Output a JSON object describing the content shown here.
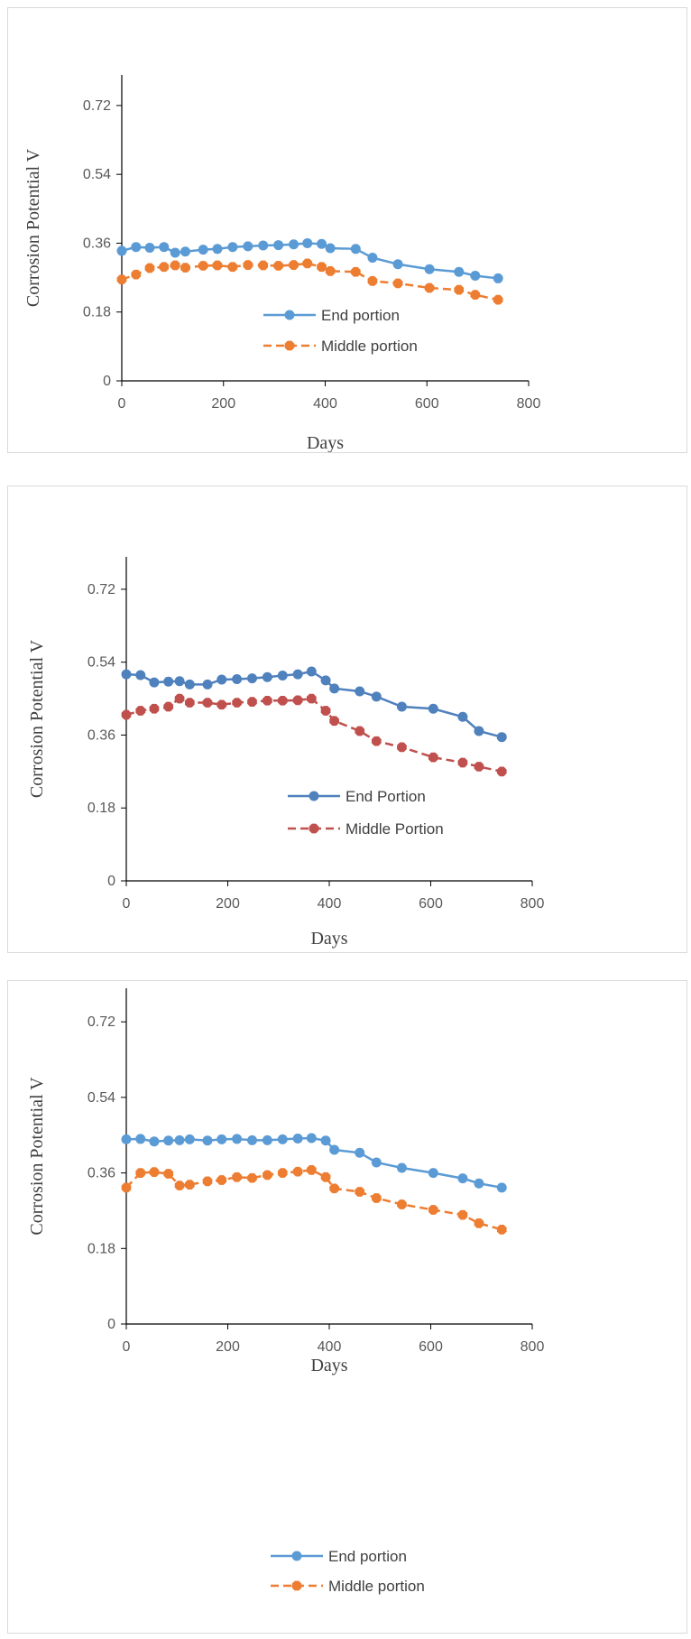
{
  "chart_data": [
    {
      "type": "line",
      "xlabel": "Days",
      "ylabel": "Corrosion Potential V",
      "xlim": [
        0,
        800
      ],
      "ylim": [
        0,
        0.8
      ],
      "xticks": [
        "0",
        "200",
        "400",
        "600",
        "800"
      ],
      "yticks": [
        "0",
        "0.18",
        "0.36",
        "0.54",
        "0.72"
      ],
      "legend_position": "center-right",
      "series": [
        {
          "name": "End portion",
          "color": "#5b9bd5",
          "style": "solid",
          "marker": "circle",
          "x": [
            0,
            28,
            55,
            83,
            105,
            125,
            160,
            188,
            218,
            248,
            278,
            308,
            338,
            365,
            393,
            410,
            460,
            493,
            543,
            605,
            663,
            695,
            740
          ],
          "y": [
            0.34,
            0.35,
            0.348,
            0.35,
            0.335,
            0.338,
            0.343,
            0.345,
            0.35,
            0.352,
            0.354,
            0.355,
            0.357,
            0.36,
            0.358,
            0.347,
            0.345,
            0.322,
            0.305,
            0.292,
            0.285,
            0.275,
            0.268
          ]
        },
        {
          "name": "Middle portion",
          "color": "#ed7d31",
          "style": "dashed",
          "marker": "octagon",
          "x": [
            0,
            28,
            55,
            83,
            105,
            125,
            160,
            188,
            218,
            248,
            278,
            308,
            338,
            365,
            393,
            410,
            460,
            493,
            543,
            605,
            663,
            695,
            740
          ],
          "y": [
            0.265,
            0.278,
            0.295,
            0.298,
            0.302,
            0.296,
            0.301,
            0.302,
            0.298,
            0.303,
            0.302,
            0.301,
            0.303,
            0.307,
            0.298,
            0.287,
            0.285,
            0.261,
            0.255,
            0.243,
            0.238,
            0.225,
            0.212
          ]
        }
      ]
    },
    {
      "type": "line",
      "xlabel": "Days",
      "ylabel": "Corrosion Potential V",
      "xlim": [
        0,
        800
      ],
      "ylim": [
        0,
        0.8
      ],
      "xticks": [
        "0",
        "200",
        "400",
        "600",
        "800"
      ],
      "yticks": [
        "0",
        "0.18",
        "0.36",
        "0.54",
        "0.72"
      ],
      "legend_position": "center-right",
      "series": [
        {
          "name": "End Portion",
          "color": "#4f81bd",
          "style": "solid",
          "marker": "circle",
          "x": [
            0,
            28,
            55,
            83,
            105,
            125,
            160,
            188,
            218,
            248,
            278,
            308,
            338,
            365,
            393,
            410,
            460,
            493,
            543,
            605,
            663,
            695,
            740
          ],
          "y": [
            0.51,
            0.508,
            0.49,
            0.492,
            0.493,
            0.485,
            0.485,
            0.497,
            0.498,
            0.5,
            0.503,
            0.507,
            0.51,
            0.517,
            0.495,
            0.475,
            0.468,
            0.455,
            0.43,
            0.425,
            0.405,
            0.37,
            0.355
          ]
        },
        {
          "name": "Middle Portion",
          "color": "#c0504d",
          "style": "dashed",
          "marker": "octagon",
          "x": [
            0,
            28,
            55,
            83,
            105,
            125,
            160,
            188,
            218,
            248,
            278,
            308,
            338,
            365,
            393,
            410,
            460,
            493,
            543,
            605,
            663,
            695,
            740
          ],
          "y": [
            0.41,
            0.42,
            0.425,
            0.43,
            0.45,
            0.44,
            0.44,
            0.435,
            0.44,
            0.442,
            0.445,
            0.445,
            0.446,
            0.45,
            0.42,
            0.395,
            0.37,
            0.345,
            0.33,
            0.305,
            0.292,
            0.282,
            0.27
          ]
        }
      ]
    },
    {
      "type": "line",
      "xlabel": "Days",
      "ylabel": "Corrosion Potential V",
      "xlim": [
        0,
        800
      ],
      "ylim": [
        0,
        0.8
      ],
      "xticks": [
        "0",
        "200",
        "400",
        "600",
        "800"
      ],
      "yticks": [
        "0",
        "0.18",
        "0.36",
        "0.54",
        "0.72"
      ],
      "legend_position": "center-right",
      "series": [
        {
          "name": "End portion",
          "color": "#5b9bd5",
          "style": "solid",
          "marker": "circle",
          "x": [
            0,
            28,
            55,
            83,
            105,
            125,
            160,
            188,
            218,
            248,
            278,
            308,
            338,
            365,
            393,
            410,
            460,
            493,
            543,
            605,
            663,
            695,
            740
          ],
          "y": [
            0.44,
            0.441,
            0.435,
            0.437,
            0.438,
            0.44,
            0.437,
            0.44,
            0.441,
            0.438,
            0.438,
            0.44,
            0.442,
            0.443,
            0.437,
            0.415,
            0.408,
            0.385,
            0.372,
            0.36,
            0.347,
            0.335,
            0.325
          ]
        },
        {
          "name": "Middle portion",
          "color": "#ed7d31",
          "style": "dashed",
          "marker": "octagon",
          "x": [
            0,
            28,
            55,
            83,
            105,
            125,
            160,
            188,
            218,
            248,
            278,
            308,
            338,
            365,
            393,
            410,
            460,
            493,
            543,
            605,
            663,
            695,
            740
          ],
          "y": [
            0.325,
            0.36,
            0.362,
            0.358,
            0.33,
            0.332,
            0.34,
            0.343,
            0.35,
            0.348,
            0.355,
            0.36,
            0.363,
            0.367,
            0.35,
            0.323,
            0.315,
            0.3,
            0.285,
            0.272,
            0.26,
            0.24,
            0.225
          ]
        }
      ]
    }
  ]
}
